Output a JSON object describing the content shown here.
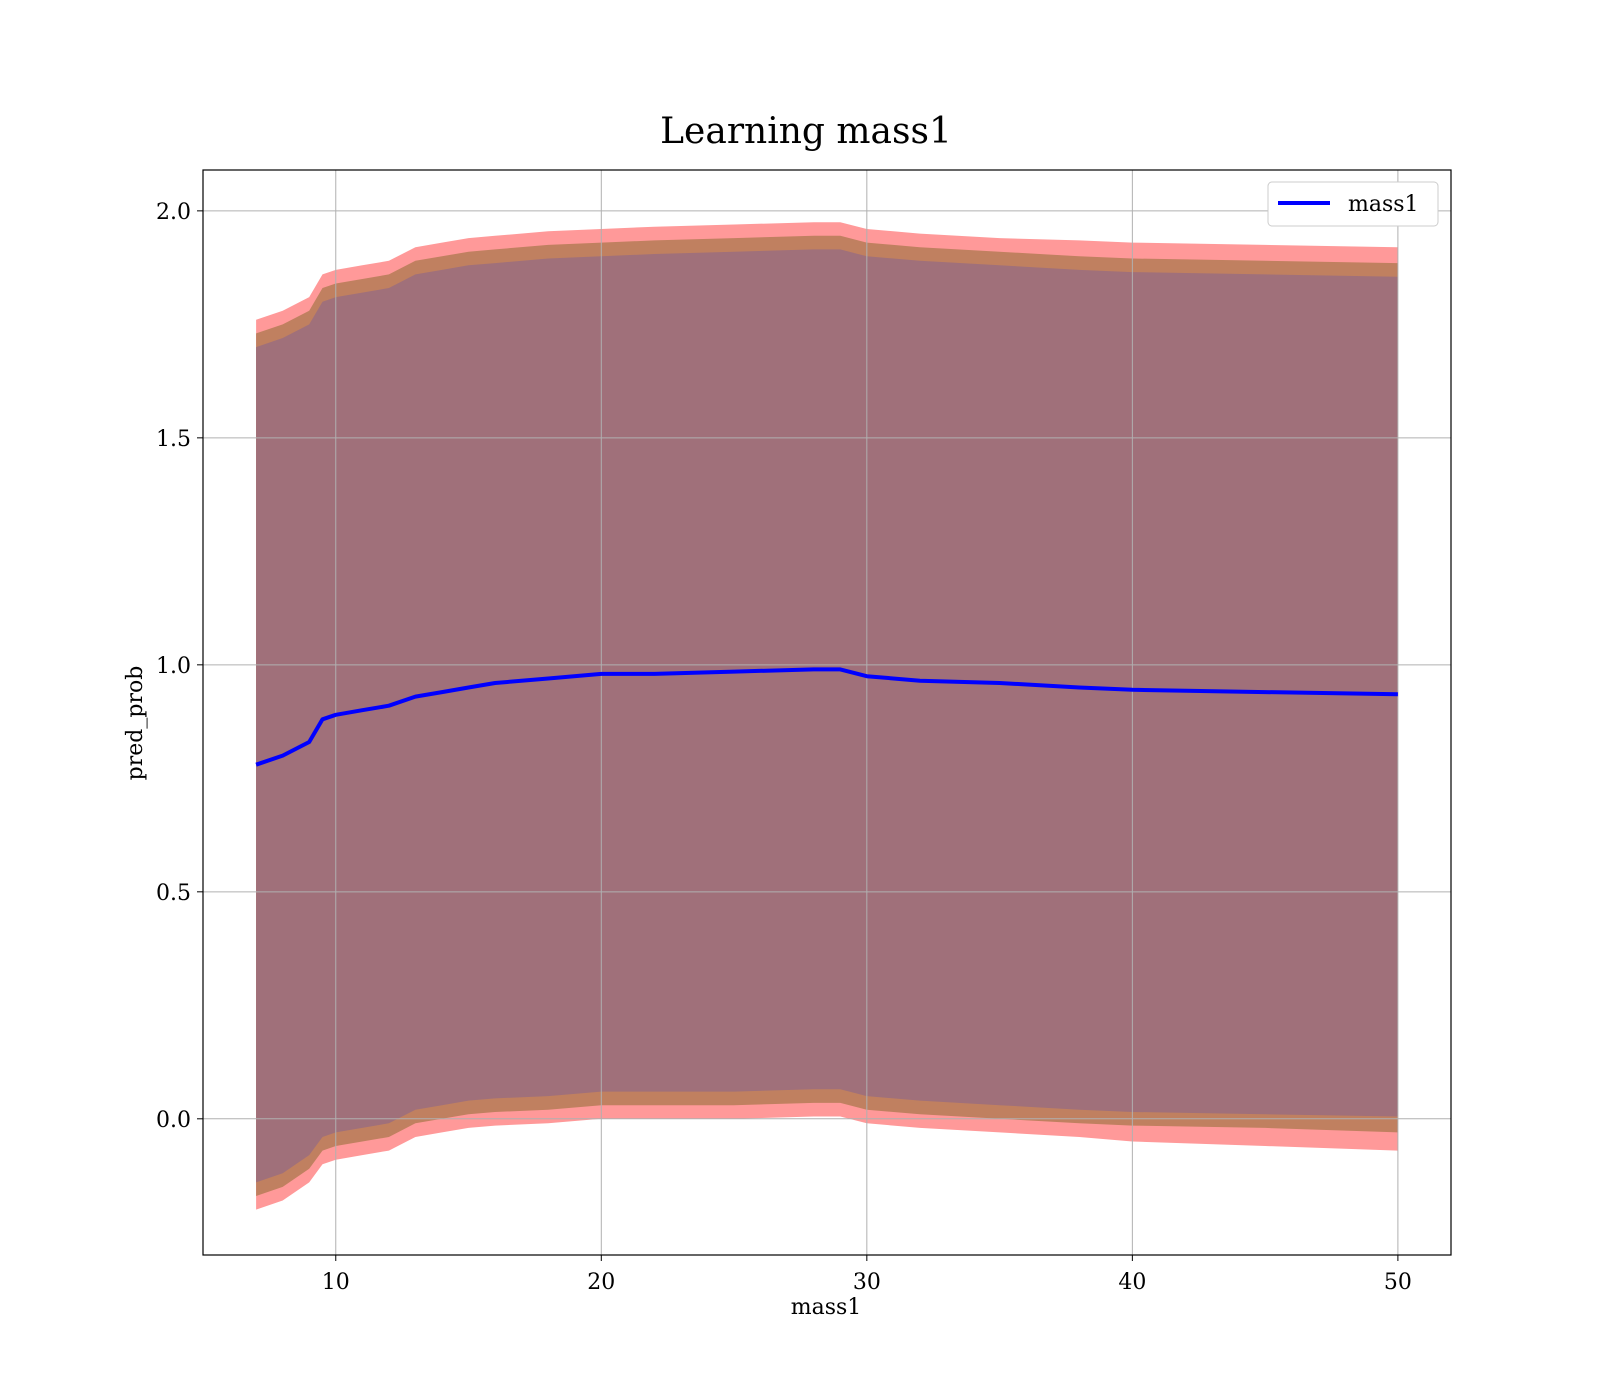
{
  "chart_data": {
    "type": "line",
    "title": "Learning mass1",
    "xlabel": "mass1",
    "ylabel": "pred_prob",
    "xlim": [
      5,
      52
    ],
    "ylim": [
      -0.3,
      2.09
    ],
    "x_ticks": [
      10,
      20,
      30,
      40,
      50
    ],
    "y_ticks": [
      0.0,
      0.5,
      1.0,
      1.5,
      2.0
    ],
    "x_tick_labels": [
      "10",
      "20",
      "30",
      "40",
      "50"
    ],
    "y_tick_labels": [
      "0.0",
      "0.5",
      "1.0",
      "1.5",
      "2.0"
    ],
    "grid": true,
    "legend": {
      "position": "top-right",
      "entries": [
        "mass1"
      ]
    },
    "colors": {
      "line": "#0000ff",
      "band_outer": "#ff9999",
      "band_mid": "#c08060",
      "band_inner": "#a0707a",
      "grid": "#b0b0b0"
    },
    "series": [
      {
        "name": "mass1",
        "x": [
          7,
          8,
          9,
          9.5,
          10,
          11,
          12,
          13,
          14,
          15,
          16,
          18,
          20,
          22,
          25,
          28,
          29,
          30,
          32,
          35,
          38,
          40,
          45,
          50
        ],
        "y": [
          0.78,
          0.8,
          0.83,
          0.88,
          0.89,
          0.9,
          0.91,
          0.93,
          0.94,
          0.95,
          0.96,
          0.97,
          0.98,
          0.98,
          0.985,
          0.99,
          0.99,
          0.975,
          0.965,
          0.96,
          0.95,
          0.945,
          0.94,
          0.935
        ]
      }
    ],
    "band_outer": {
      "x": [
        7,
        8,
        9,
        9.5,
        10,
        11,
        12,
        13,
        14,
        15,
        16,
        18,
        20,
        22,
        25,
        28,
        29,
        30,
        32,
        35,
        38,
        40,
        45,
        50
      ],
      "upper": [
        1.76,
        1.78,
        1.81,
        1.86,
        1.87,
        1.88,
        1.89,
        1.92,
        1.93,
        1.94,
        1.945,
        1.955,
        1.96,
        1.965,
        1.97,
        1.975,
        1.975,
        1.96,
        1.95,
        1.94,
        1.935,
        1.93,
        1.925,
        1.92
      ],
      "lower": [
        -0.2,
        -0.18,
        -0.14,
        -0.1,
        -0.09,
        -0.08,
        -0.07,
        -0.04,
        -0.03,
        -0.02,
        -0.015,
        -0.01,
        0.0,
        0.0,
        0.0,
        0.005,
        0.005,
        -0.01,
        -0.02,
        -0.03,
        -0.04,
        -0.05,
        -0.06,
        -0.07
      ]
    },
    "band_mid": {
      "x": [
        7,
        8,
        9,
        9.5,
        10,
        11,
        12,
        13,
        14,
        15,
        16,
        18,
        20,
        22,
        25,
        28,
        29,
        30,
        32,
        35,
        38,
        40,
        45,
        50
      ],
      "upper": [
        1.73,
        1.75,
        1.78,
        1.83,
        1.84,
        1.85,
        1.86,
        1.89,
        1.9,
        1.91,
        1.915,
        1.925,
        1.93,
        1.935,
        1.94,
        1.945,
        1.945,
        1.93,
        1.92,
        1.91,
        1.9,
        1.895,
        1.89,
        1.885
      ],
      "lower": [
        -0.17,
        -0.15,
        -0.11,
        -0.07,
        -0.06,
        -0.05,
        -0.04,
        -0.01,
        0.0,
        0.01,
        0.015,
        0.02,
        0.03,
        0.03,
        0.03,
        0.035,
        0.035,
        0.02,
        0.01,
        0.0,
        -0.01,
        -0.015,
        -0.02,
        -0.03
      ]
    },
    "band_inner": {
      "x": [
        7,
        8,
        9,
        9.5,
        10,
        11,
        12,
        13,
        14,
        15,
        16,
        18,
        20,
        22,
        25,
        28,
        29,
        30,
        32,
        35,
        38,
        40,
        45,
        50
      ],
      "upper": [
        1.7,
        1.72,
        1.75,
        1.8,
        1.81,
        1.82,
        1.83,
        1.86,
        1.87,
        1.88,
        1.885,
        1.895,
        1.9,
        1.905,
        1.91,
        1.915,
        1.915,
        1.9,
        1.89,
        1.88,
        1.87,
        1.865,
        1.86,
        1.855
      ],
      "lower": [
        -0.14,
        -0.12,
        -0.08,
        -0.04,
        -0.03,
        -0.02,
        -0.01,
        0.02,
        0.03,
        0.04,
        0.045,
        0.05,
        0.06,
        0.06,
        0.06,
        0.065,
        0.065,
        0.05,
        0.04,
        0.03,
        0.02,
        0.015,
        0.01,
        0.005
      ]
    }
  }
}
